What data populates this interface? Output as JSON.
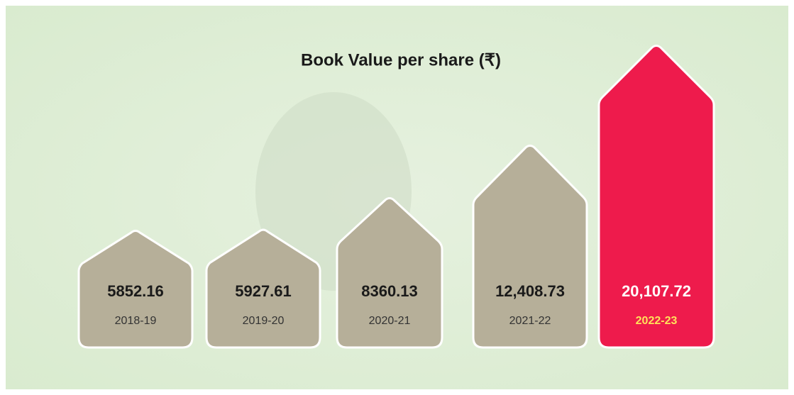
{
  "chart_data": {
    "type": "bar",
    "title": "Book Value per share (₹)",
    "categories": [
      "2018-19",
      "2019-20",
      "2020-21",
      "2021-22",
      "2022-23"
    ],
    "values": [
      5852.16,
      5927.61,
      8360.13,
      12408.73,
      20107.72
    ],
    "value_labels": [
      "5852.16",
      "5927.61",
      "8360.13",
      "12,408.73",
      "20,107.72"
    ],
    "colors": [
      "#b6af99",
      "#b6af99",
      "#b6af99",
      "#b6af99",
      "#ee1b4c"
    ],
    "category_colors": [
      "#333333",
      "#333333",
      "#333333",
      "#333333",
      "#ffe25a"
    ],
    "value_label_colors": [
      "#1a1a1a",
      "#1a1a1a",
      "#1a1a1a",
      "#1a1a1a",
      "#ffffff"
    ]
  }
}
